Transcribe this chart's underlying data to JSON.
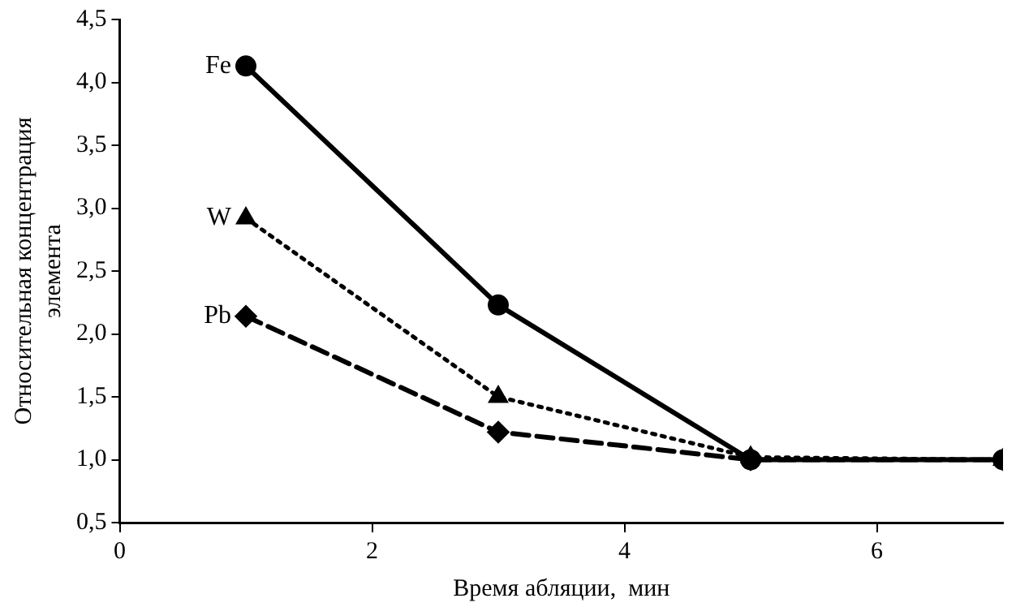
{
  "chart_data": {
    "type": "line",
    "xlabel": "Время абляции,  мин",
    "ylabel": "Относительная концентрация элемента",
    "xlim": [
      0,
      7
    ],
    "xticks": [
      0,
      2,
      4,
      6
    ],
    "ylim": [
      0.5,
      4.5
    ],
    "yticks": [
      {
        "value": 0.5,
        "label": "0,5"
      },
      {
        "value": 1,
        "label": "1,0"
      },
      {
        "value": 1.5,
        "label": "1,5"
      },
      {
        "value": 2,
        "label": "2,0"
      },
      {
        "value": 2.5,
        "label": "2,5"
      },
      {
        "value": 3,
        "label": "3,0"
      },
      {
        "value": 3.5,
        "label": "3,5"
      },
      {
        "value": 4,
        "label": "4,0"
      },
      {
        "value": 4.5,
        "label": "4,5"
      }
    ],
    "x": [
      1,
      3,
      5,
      7
    ],
    "grid": false,
    "legend": false,
    "series": [
      {
        "name": "Fe",
        "color": "#000000",
        "marker": "circle",
        "line_style": "solid",
        "values": [
          4.13,
          2.23,
          1.0,
          1.0
        ]
      },
      {
        "name": "W",
        "color": "#000000",
        "marker": "triangle",
        "line_style": "dotted",
        "values": [
          2.92,
          1.5,
          1.02,
          1.0
        ]
      },
      {
        "name": "Pb",
        "color": "#000000",
        "marker": "diamond",
        "line_style": "dashed",
        "values": [
          2.14,
          1.22,
          1.0,
          1.0
        ]
      }
    ]
  }
}
